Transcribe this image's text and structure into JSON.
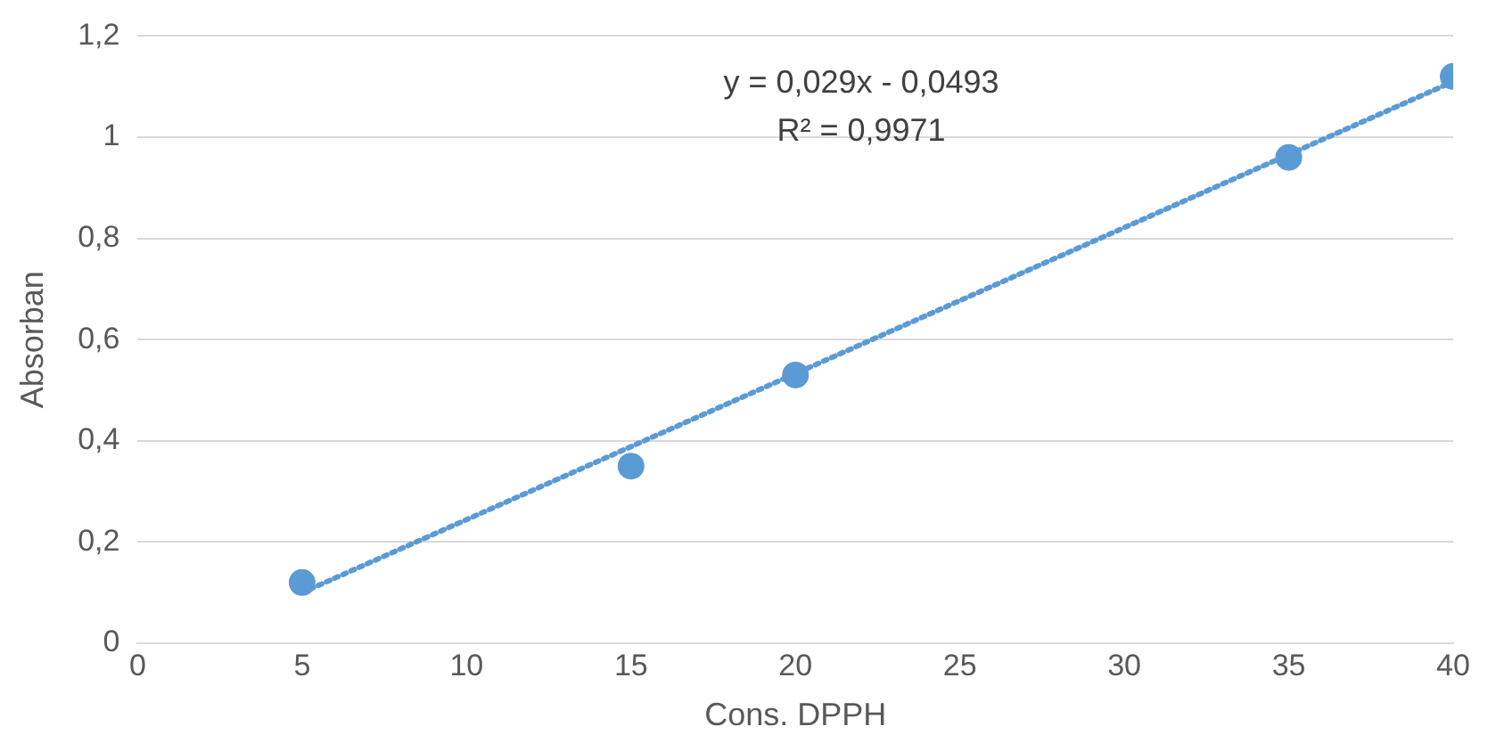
{
  "chart_data": {
    "type": "scatter",
    "xlabel": "Cons. DPPH",
    "ylabel": "Absorban",
    "x": [
      5,
      15,
      20,
      35,
      40
    ],
    "series": [
      {
        "type": "scatter",
        "color": "#5b9bd5",
        "values": [
          0.12,
          0.35,
          0.53,
          0.96,
          1.12
        ],
        "marker": "circle"
      },
      {
        "type": "line",
        "color": "#5b9bd5",
        "x": [
          5,
          40
        ],
        "values": [
          0.1,
          1.11
        ],
        "line_style": "dotted",
        "marker": "none"
      }
    ],
    "xlim": [
      0,
      40
    ],
    "xticks": [
      0,
      5,
      10,
      15,
      20,
      25,
      30,
      35,
      40
    ],
    "ylim": [
      0,
      1.2
    ],
    "yticks": [
      0,
      {
        "value": 0.2,
        "label": "0,2"
      },
      {
        "value": 0.4,
        "label": "0,4"
      },
      {
        "value": 0.6,
        "label": "0,6"
      },
      {
        "value": 0.8,
        "label": "0,8"
      },
      1,
      {
        "value": 1.2,
        "label": "1,2"
      }
    ],
    "grid": "y",
    "annotations": [
      "y = 0,029x - 0,0493",
      "R² = 0,9971"
    ]
  }
}
